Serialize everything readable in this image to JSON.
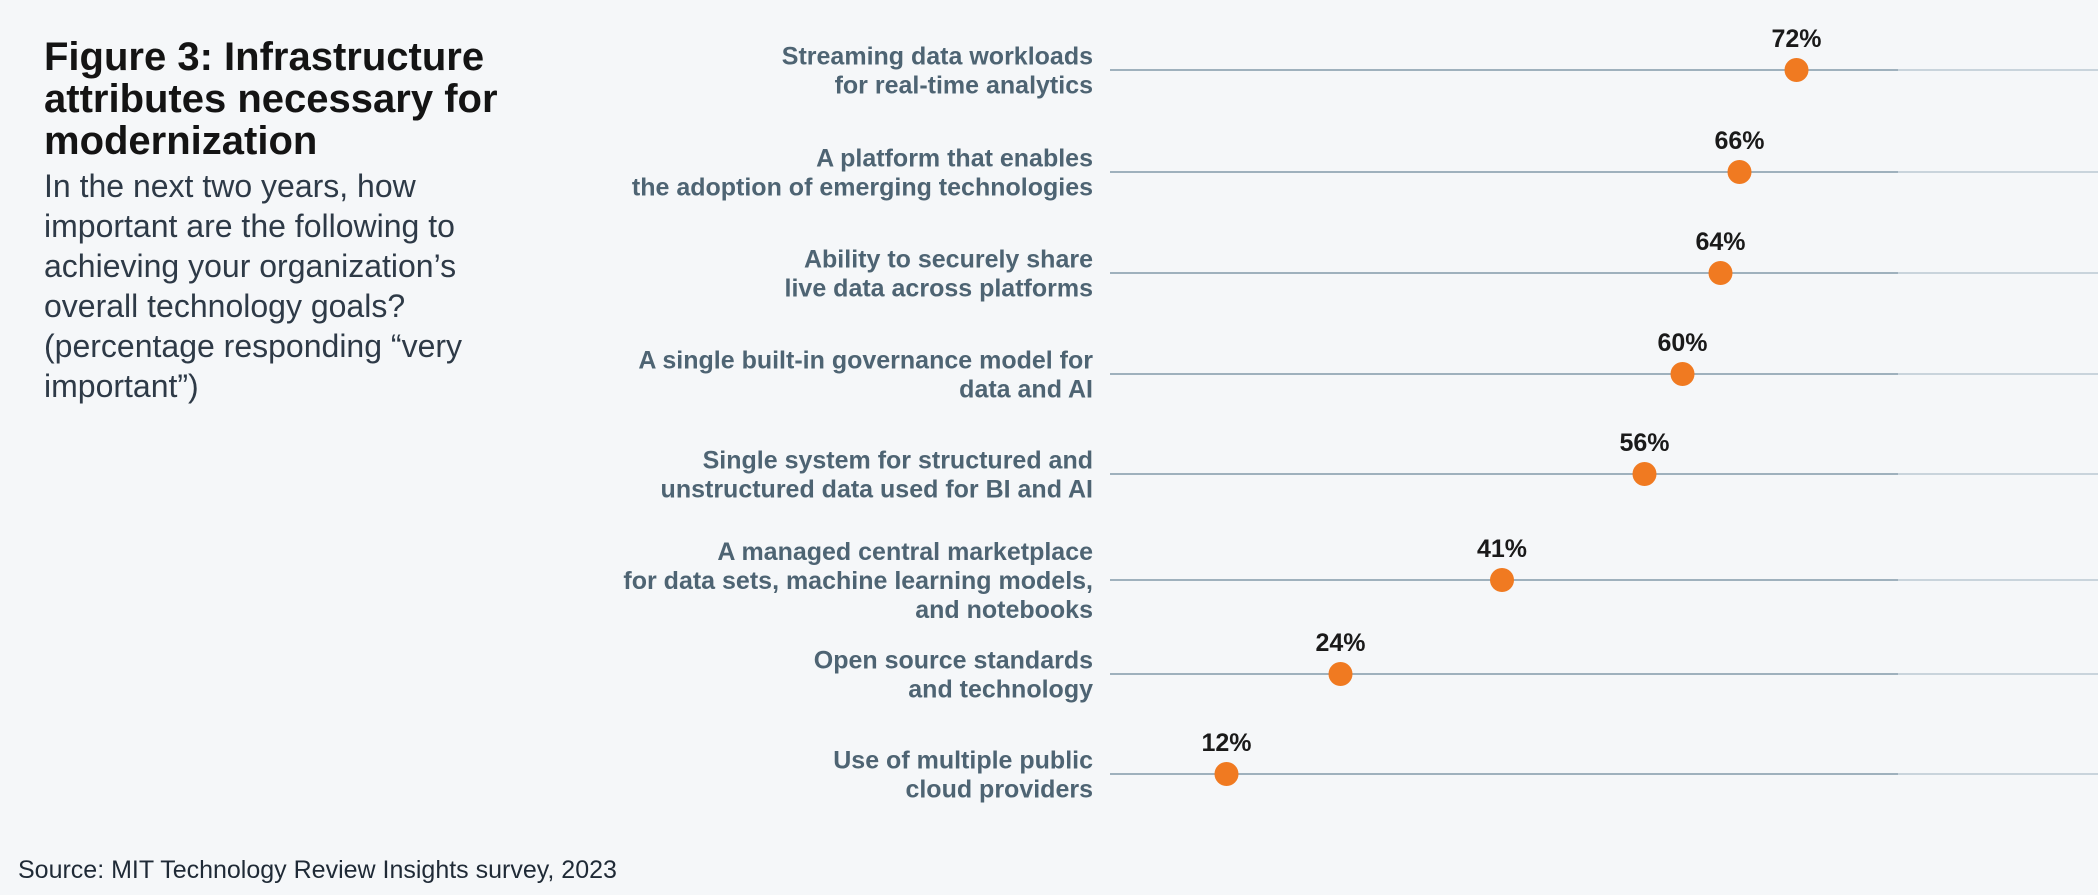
{
  "header": {
    "title": "Figure 3: Infrastructure attributes necessary for modernization",
    "subtitle": "In the next two years, how important are the following to achieving your organization’s overall technology goals? (percentage responding “very important”)"
  },
  "footer": {
    "source": "Source: MIT Technology Review Insights survey, 2023"
  },
  "colors": {
    "dot": "#f07a21",
    "track": "#9fb1bd",
    "track_end": "#c9d4dc",
    "category_text": "#4e6473",
    "value_text": "#1a1a1a"
  },
  "chart_data": {
    "type": "scatter",
    "title": "Figure 3: Infrastructure attributes necessary for modernization",
    "subtitle": "In the next two years, how important are the following to achieving your organization’s overall technology goals? (percentage responding “very important”)",
    "xlabel": "",
    "ylabel": "",
    "xlim": [
      0,
      100
    ],
    "value_suffix": "%",
    "grid": false,
    "legend": "none",
    "categories": [
      [
        "Streaming data workloads",
        "for real-time analytics"
      ],
      [
        "A platform that enables",
        "the adoption of emerging technologies"
      ],
      [
        "Ability to securely share",
        "live data across platforms"
      ],
      [
        "A single built-in governance model for",
        "data and AI"
      ],
      [
        "Single system for structured and",
        "unstructured data used for BI and AI"
      ],
      [
        "A managed central marketplace",
        "for data sets, machine learning models,",
        "and notebooks"
      ],
      [
        "Open source standards",
        "and technology"
      ],
      [
        "Use of multiple public",
        "cloud providers"
      ]
    ],
    "values": [
      72,
      66,
      64,
      60,
      56,
      41,
      24,
      12
    ],
    "value_labels": [
      "72%",
      "66%",
      "64%",
      "60%",
      "56%",
      "41%",
      "24%",
      "12%"
    ]
  }
}
